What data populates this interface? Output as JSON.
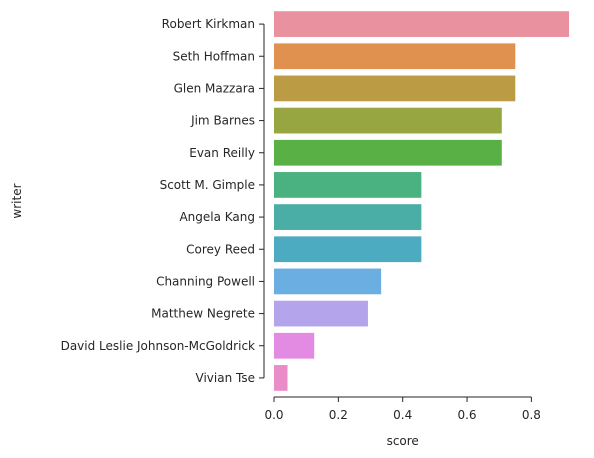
{
  "chart_data": {
    "type": "bar",
    "orientation": "horizontal",
    "xlabel": "score",
    "ylabel": "writer",
    "xlim": [
      0,
      0.92
    ],
    "xticks": [
      0.0,
      0.2,
      0.4,
      0.6,
      0.8
    ],
    "xtick_labels": [
      "0.0",
      "0.2",
      "0.4",
      "0.6",
      "0.8"
    ],
    "grid": false,
    "categories": [
      "Robert Kirkman",
      "Seth Hoffman",
      "Glen Mazzara",
      "Jim Barnes",
      "Evan Reilly",
      "Scott M. Gimple",
      "Angela Kang",
      "Corey Reed",
      "Channing Powell",
      "Matthew Negrete",
      "David Leslie Johnson-McGoldrick",
      "Vivian Tse"
    ],
    "values": [
      0.917,
      0.75,
      0.75,
      0.708,
      0.708,
      0.458,
      0.458,
      0.458,
      0.333,
      0.292,
      0.125,
      0.042
    ],
    "colors": [
      "#e9919e",
      "#e0914f",
      "#bb9b43",
      "#98a641",
      "#59b045",
      "#4ab181",
      "#4aada6",
      "#4caac1",
      "#6aaee2",
      "#b3a4ec",
      "#e38ae2",
      "#ea8cc7"
    ]
  }
}
